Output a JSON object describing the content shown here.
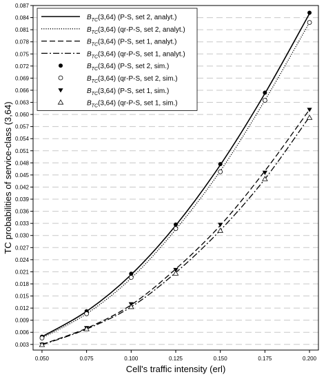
{
  "chart_data": {
    "type": "line",
    "title": "",
    "xlabel": "Cell's traffic intensity (erl)",
    "ylabel": "TC probabilities of service-class (3,64)",
    "x": [
      0.05,
      0.075,
      0.1,
      0.125,
      0.15,
      0.175,
      0.2
    ],
    "x_tick_labels": [
      "0.050",
      "0.075",
      "0.100",
      "0.125",
      "0.150",
      "0.175",
      "0.200"
    ],
    "xlim": [
      0.045,
      0.205
    ],
    "ylim": [
      0.0016,
      0.087
    ],
    "y_ticks": [
      0.003,
      0.006,
      0.009,
      0.012,
      0.015,
      0.018,
      0.021,
      0.024,
      0.027,
      0.03,
      0.033,
      0.036,
      0.039,
      0.042,
      0.045,
      0.048,
      0.051,
      0.054,
      0.057,
      0.06,
      0.063,
      0.066,
      0.069,
      0.072,
      0.075,
      0.078,
      0.081,
      0.084,
      0.087
    ],
    "y_tick_labels": [
      "0.003",
      "0.006",
      "0.009",
      "0.012",
      "0.015",
      "0.018",
      "0.021",
      "0.024",
      "0.027",
      "0.030",
      "0.033",
      "0.036",
      "0.039",
      "0.042",
      "0.045",
      "0.048",
      "0.051",
      "0.054",
      "0.057",
      "0.060",
      "0.063",
      "0.066",
      "0.069",
      "0.072",
      "0.075",
      "0.078",
      "0.081",
      "0.084",
      "0.087"
    ],
    "grid": "horizontal dashed",
    "legend_position": "top-left",
    "series": [
      {
        "name": "(3,64) (P-S, set 2, analyt.)",
        "kind": "line",
        "dash": "solid",
        "values": [
          0.0049,
          0.0112,
          0.0203,
          0.0325,
          0.0475,
          0.0652,
          0.085
        ]
      },
      {
        "name": "(3,64) (qr-P-S, set 2, analyt.)",
        "kind": "line",
        "dash": "dotted",
        "values": [
          0.0046,
          0.0106,
          0.0194,
          0.0315,
          0.046,
          0.0635,
          0.0828
        ]
      },
      {
        "name": "(3,64) (P-S, set 1, analyt.)",
        "kind": "line",
        "dash": "dashed",
        "values": [
          0.003,
          0.007,
          0.0128,
          0.0217,
          0.0325,
          0.046,
          0.0612
        ]
      },
      {
        "name": "(3,64) (qr-P-S, set 1, analyt.)",
        "kind": "line",
        "dash": "dashdot",
        "values": [
          0.0029,
          0.0068,
          0.0123,
          0.0208,
          0.0313,
          0.044,
          0.0594
        ]
      },
      {
        "name": "(3,64) (P-S, set 2, sim.)",
        "kind": "marker",
        "marker": "filled-circle",
        "values": [
          0.0049,
          0.0112,
          0.0205,
          0.0327,
          0.0477,
          0.0654,
          0.0852
        ]
      },
      {
        "name": "(3,64) (qr-P-S, set 2, sim.)",
        "kind": "marker",
        "marker": "open-circle",
        "values": [
          0.0046,
          0.0106,
          0.0196,
          0.0317,
          0.0458,
          0.0635,
          0.0828
        ]
      },
      {
        "name": "(3,64) (P-S, set 1, sim.)",
        "kind": "marker",
        "marker": "filled-triangle-down",
        "values": [
          0.003,
          0.0071,
          0.013,
          0.0215,
          0.0327,
          0.0456,
          0.0612
        ]
      },
      {
        "name": "(3,64) (qr-P-S, set 1, sim.)",
        "kind": "marker",
        "marker": "open-triangle-up",
        "values": [
          0.0029,
          0.0068,
          0.0123,
          0.0206,
          0.0312,
          0.044,
          0.0592
        ]
      }
    ],
    "legend_symbol": "B",
    "legend_symbol_sub": "TC"
  }
}
